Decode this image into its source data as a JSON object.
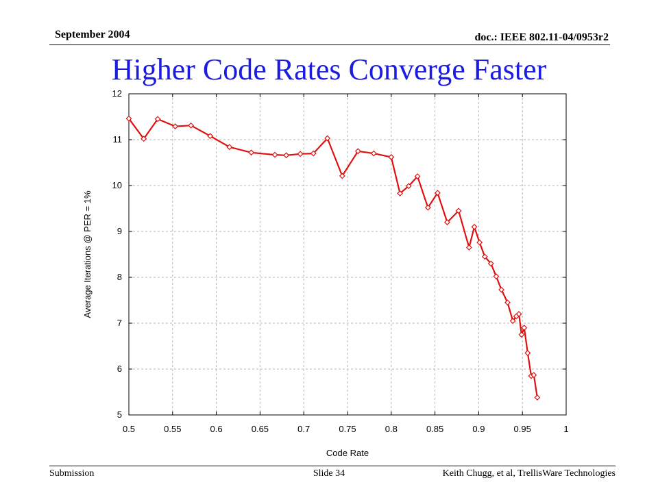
{
  "header": {
    "date": "September 2004",
    "doc_id": "doc.: IEEE 802.11-04/0953r2"
  },
  "slide": {
    "title": "Higher Code Rates Converge Faster"
  },
  "footer": {
    "submission": "Submission",
    "slide_number": "Slide 34",
    "author": "Keith Chugg, et al, TrellisWare  Technologies"
  },
  "colors": {
    "title": "#1c1ce0",
    "series_line": "#e01010",
    "grid": "#b4b4b4"
  },
  "chart_data": {
    "type": "line",
    "title": "",
    "xlabel": "Code Rate",
    "ylabel": "Average Iterations @ PER = 1%",
    "xlim": [
      0.5,
      1
    ],
    "ylim": [
      5,
      12
    ],
    "x_ticks": [
      "0.5",
      "0.55",
      "0.6",
      "0.65",
      "0.7",
      "0.75",
      "0.8",
      "0.85",
      "0.9",
      "0.95",
      "1"
    ],
    "y_ticks": [
      "5",
      "6",
      "7",
      "8",
      "9",
      "10",
      "11",
      "12"
    ],
    "grid": true,
    "marker": "diamond",
    "series": [
      {
        "points": [
          [
            0.5,
            11.46
          ],
          [
            0.517,
            11.02
          ],
          [
            0.533,
            11.45
          ],
          [
            0.553,
            11.29
          ],
          [
            0.571,
            11.31
          ],
          [
            0.593,
            11.08
          ],
          [
            0.615,
            10.84
          ],
          [
            0.64,
            10.72
          ],
          [
            0.667,
            10.67
          ],
          [
            0.68,
            10.66
          ],
          [
            0.696,
            10.69
          ],
          [
            0.711,
            10.7
          ],
          [
            0.727,
            11.03
          ],
          [
            0.744,
            10.21
          ],
          [
            0.762,
            10.75
          ],
          [
            0.78,
            10.7
          ],
          [
            0.8,
            10.62
          ],
          [
            0.81,
            9.83
          ],
          [
            0.82,
            9.99
          ],
          [
            0.83,
            10.2
          ],
          [
            0.842,
            9.52
          ],
          [
            0.853,
            9.84
          ],
          [
            0.864,
            9.2
          ],
          [
            0.877,
            9.45
          ],
          [
            0.889,
            8.65
          ],
          [
            0.895,
            9.1
          ],
          [
            0.901,
            8.76
          ],
          [
            0.907,
            8.45
          ],
          [
            0.914,
            8.3
          ],
          [
            0.92,
            8.02
          ],
          [
            0.926,
            7.73
          ],
          [
            0.933,
            7.45
          ],
          [
            0.939,
            7.05
          ],
          [
            0.943,
            7.15
          ],
          [
            0.946,
            7.2
          ],
          [
            0.949,
            6.75
          ],
          [
            0.952,
            6.9
          ],
          [
            0.956,
            6.35
          ],
          [
            0.96,
            5.85
          ],
          [
            0.963,
            5.87
          ],
          [
            0.967,
            5.38
          ]
        ]
      }
    ]
  }
}
